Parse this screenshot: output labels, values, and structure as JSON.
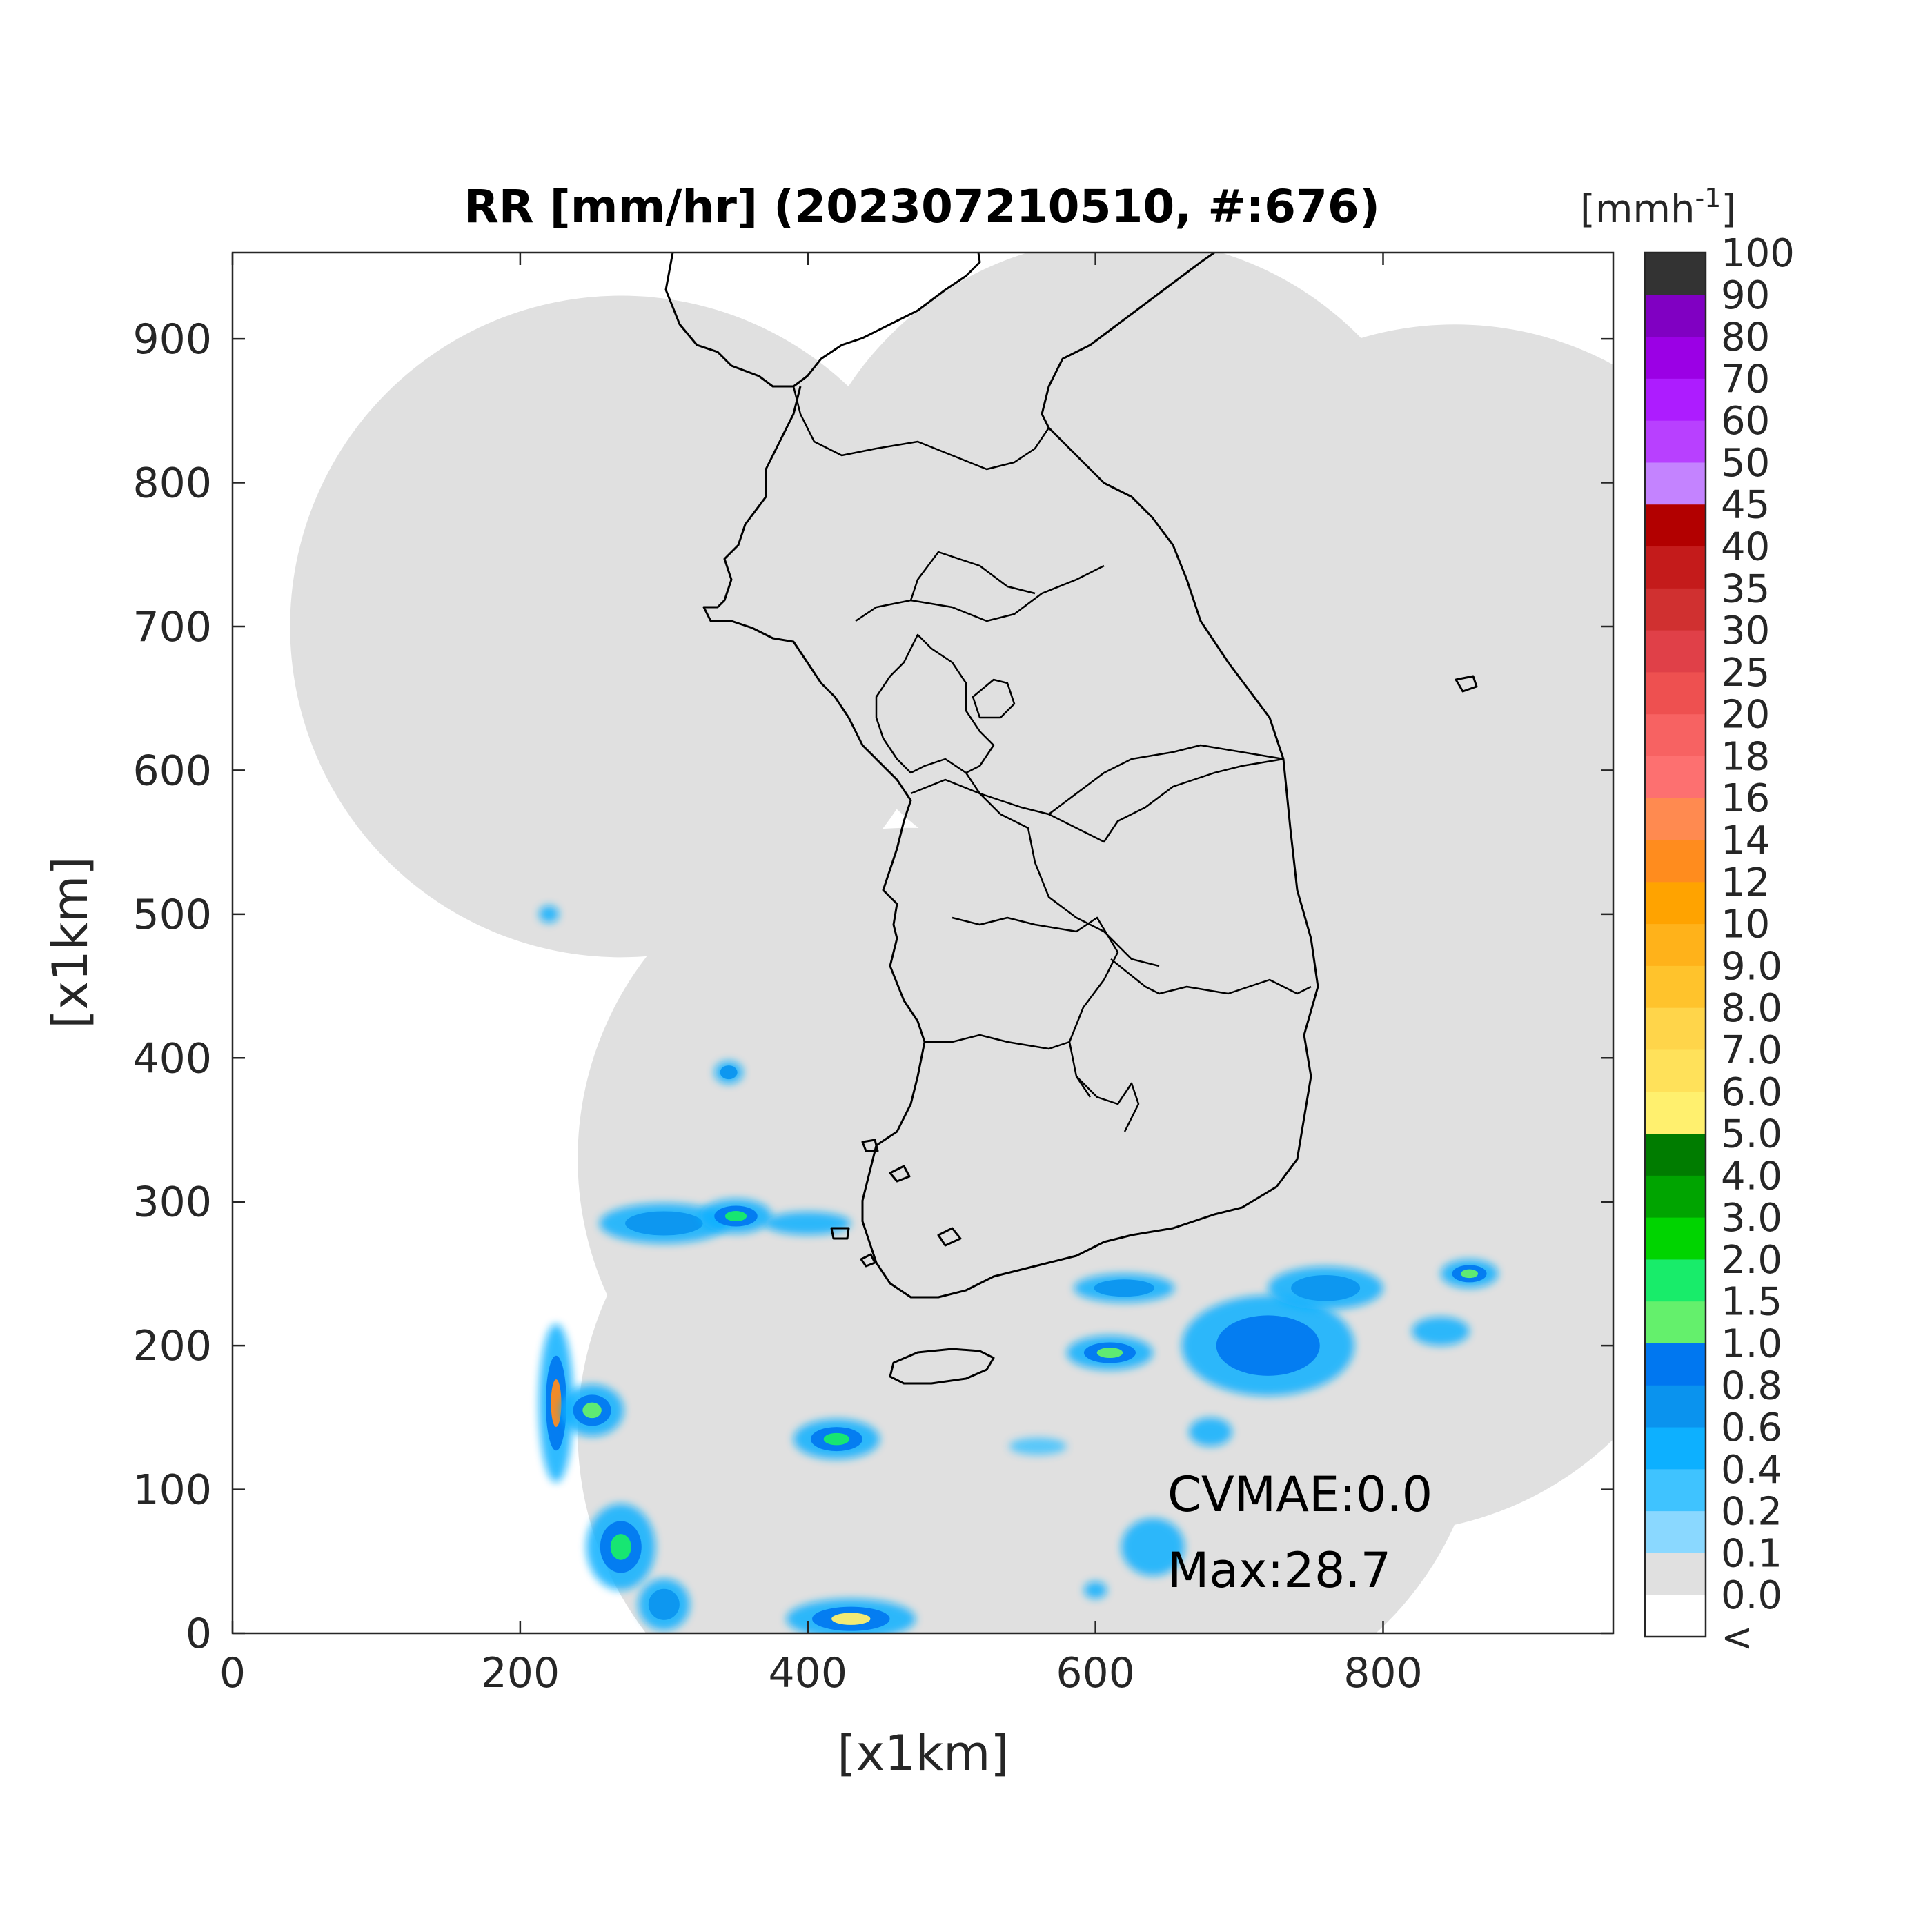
{
  "title": "RR [mm/hr] (202307210510, #:676)",
  "x_axis": {
    "label": "[x1km]",
    "ticks": [
      "0",
      "200",
      "400",
      "600",
      "800"
    ],
    "range": [
      0,
      960
    ]
  },
  "y_axis": {
    "label": "[x1km]",
    "ticks": [
      "0",
      "100",
      "200",
      "300",
      "400",
      "500",
      "600",
      "700",
      "800",
      "900"
    ],
    "range": [
      0,
      960
    ]
  },
  "colorbar": {
    "unit_label": "[mmh",
    "unit_exponent": "-1",
    "unit_close": "]",
    "labels": [
      "<",
      "0.0",
      "0.1",
      "0.2",
      "0.4",
      "0.6",
      "0.8",
      "1.0",
      "1.5",
      "2.0",
      "3.0",
      "4.0",
      "5.0",
      "6.0",
      "7.0",
      "8.0",
      "9.0",
      "10",
      "12",
      "14",
      "16",
      "18",
      "20",
      "25",
      "30",
      "35",
      "40",
      "45",
      "50",
      "60",
      "70",
      "80",
      "90",
      "100"
    ],
    "colors": [
      "#ffffff",
      "#e0e0e0",
      "#8ad8ff",
      "#3fc3ff",
      "#0db0ff",
      "#0a93ee",
      "#0077f0",
      "#64f06c",
      "#18ec6a",
      "#00d400",
      "#00a400",
      "#007c00",
      "#fff06e",
      "#ffe15a",
      "#ffd54a",
      "#ffc32c",
      "#ffb21a",
      "#ffa300",
      "#ff8c1e",
      "#ff8a50",
      "#fd7070",
      "#f76262",
      "#ee5050",
      "#e04048",
      "#d03030",
      "#c41b1b",
      "#b20000",
      "#c483ff",
      "#b840ff",
      "#ad1cff",
      "#9b00e5",
      "#8000c2",
      "#333333"
    ]
  },
  "annotations": {
    "cvmae": "CVMAE:0.0",
    "max": "Max:28.7"
  },
  "chart_data": {
    "type": "heatmap",
    "title": "RR [mm/hr] (202307210510, #:676)",
    "xlabel": "[x1km]",
    "ylabel": "[x1km]",
    "xlim": [
      0,
      960
    ],
    "ylim": [
      0,
      960
    ],
    "colorbar_unit": "mmh^-1",
    "cvmae": 0.0,
    "max_value": 28.7,
    "radar_coverage_circles_km": [
      {
        "cx": 270,
        "cy": 700,
        "r": 230
      },
      {
        "cx": 620,
        "cy": 740,
        "r": 230
      },
      {
        "cx": 850,
        "cy": 680,
        "r": 230
      },
      {
        "cx": 470,
        "cy": 330,
        "r": 230
      },
      {
        "cx": 800,
        "cy": 300,
        "r": 230
      },
      {
        "cx": 640,
        "cy": 170,
        "r": 230
      },
      {
        "cx": 470,
        "cy": 140,
        "r": 230
      },
      {
        "cx": 770,
        "cy": 480,
        "r": 230
      },
      {
        "cx": 560,
        "cy": 240,
        "r": 230
      }
    ],
    "precipitation_cells_km": [
      {
        "x": 225,
        "y": 160,
        "rx": 12,
        "ry": 55,
        "v": 12
      },
      {
        "x": 250,
        "y": 155,
        "rx": 22,
        "ry": 18,
        "v": 1.2
      },
      {
        "x": 270,
        "y": 60,
        "rx": 24,
        "ry": 30,
        "v": 1.5
      },
      {
        "x": 300,
        "y": 20,
        "rx": 18,
        "ry": 18,
        "v": 0.6
      },
      {
        "x": 430,
        "y": 10,
        "rx": 45,
        "ry": 14,
        "v": 5.0
      },
      {
        "x": 420,
        "y": 135,
        "rx": 30,
        "ry": 14,
        "v": 1.5
      },
      {
        "x": 300,
        "y": 285,
        "rx": 45,
        "ry": 14,
        "v": 0.6
      },
      {
        "x": 350,
        "y": 290,
        "rx": 25,
        "ry": 12,
        "v": 1.5
      },
      {
        "x": 400,
        "y": 285,
        "rx": 30,
        "ry": 8,
        "v": 0.4
      },
      {
        "x": 345,
        "y": 390,
        "rx": 10,
        "ry": 8,
        "v": 0.6
      },
      {
        "x": 220,
        "y": 500,
        "rx": 7,
        "ry": 6,
        "v": 0.4
      },
      {
        "x": 620,
        "y": 240,
        "rx": 35,
        "ry": 10,
        "v": 0.6
      },
      {
        "x": 610,
        "y": 195,
        "rx": 30,
        "ry": 12,
        "v": 1.2
      },
      {
        "x": 720,
        "y": 200,
        "rx": 60,
        "ry": 35,
        "v": 0.8
      },
      {
        "x": 760,
        "y": 240,
        "rx": 40,
        "ry": 15,
        "v": 0.6
      },
      {
        "x": 840,
        "y": 210,
        "rx": 20,
        "ry": 10,
        "v": 0.4
      },
      {
        "x": 860,
        "y": 250,
        "rx": 20,
        "ry": 10,
        "v": 1.0
      },
      {
        "x": 640,
        "y": 60,
        "rx": 22,
        "ry": 20,
        "v": 0.4
      },
      {
        "x": 600,
        "y": 30,
        "rx": 8,
        "ry": 6,
        "v": 0.4
      },
      {
        "x": 680,
        "y": 140,
        "rx": 15,
        "ry": 10,
        "v": 0.4
      },
      {
        "x": 560,
        "y": 130,
        "rx": 20,
        "ry": 6,
        "v": 0.2
      }
    ]
  }
}
